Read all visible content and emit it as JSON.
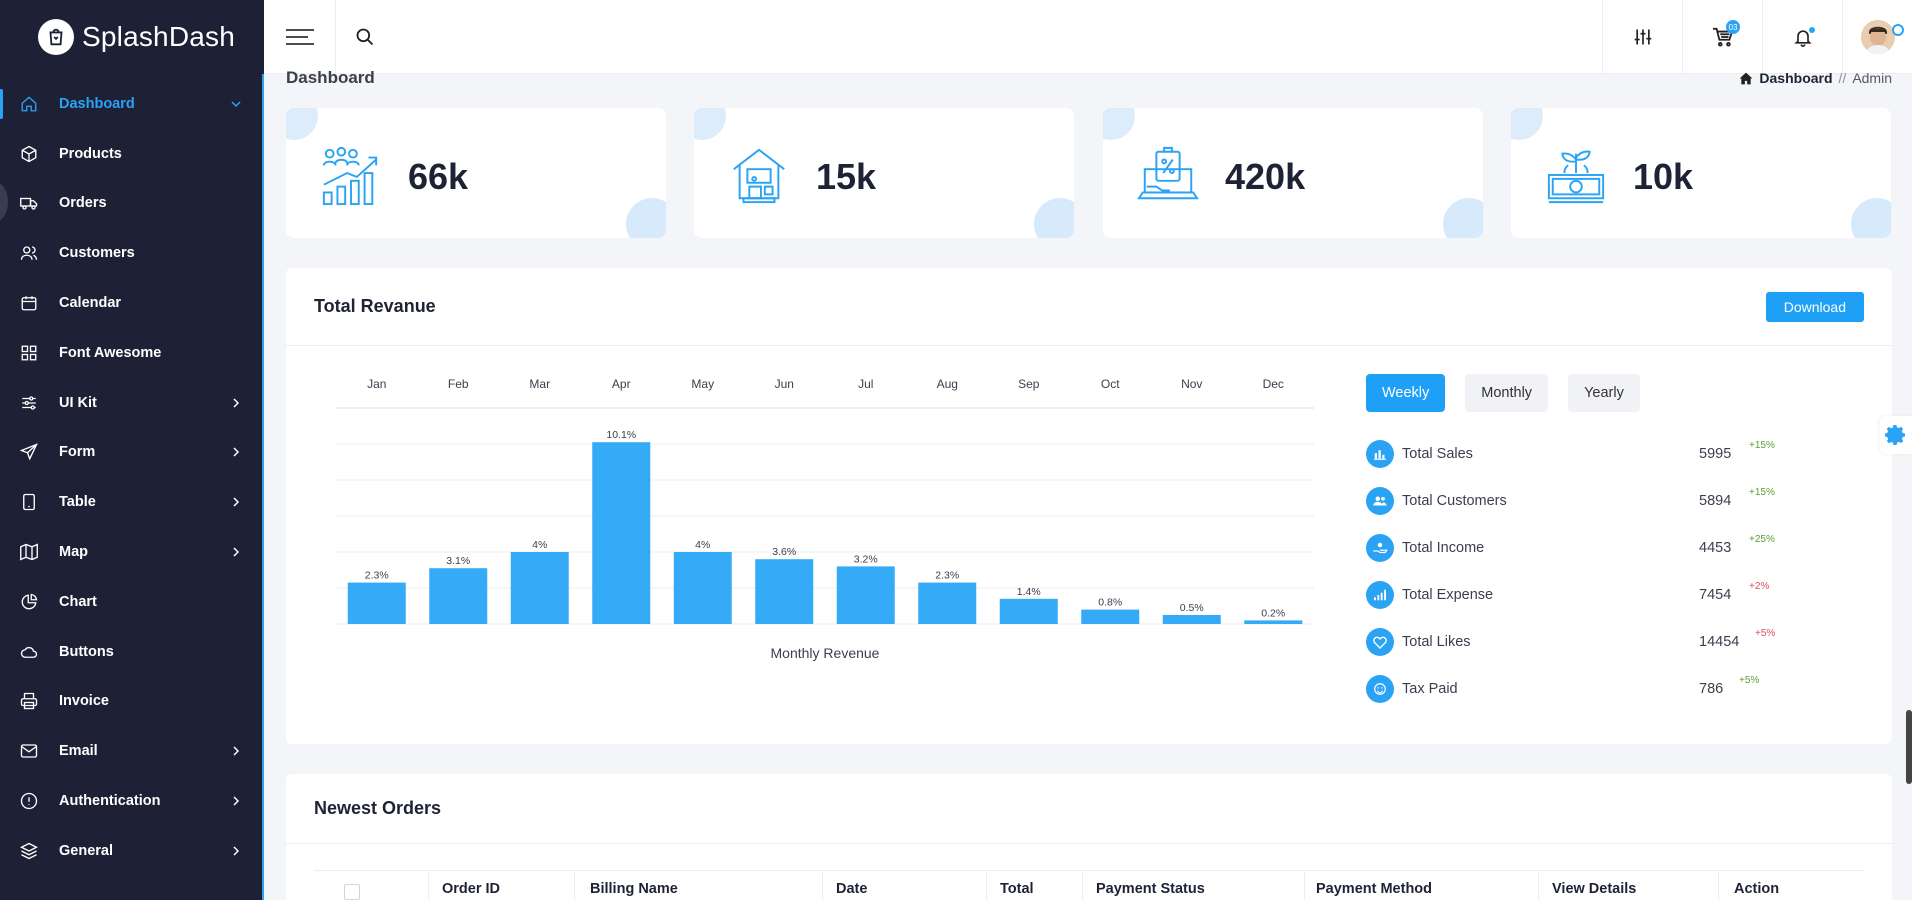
{
  "brand": {
    "name": "SplashDash"
  },
  "sidebar": {
    "items": [
      {
        "label": "Dashboard",
        "icon": "home-icon",
        "active": true,
        "expand": "down"
      },
      {
        "label": "Products",
        "icon": "cube-icon"
      },
      {
        "label": "Orders",
        "icon": "truck-icon"
      },
      {
        "label": "Customers",
        "icon": "users-icon"
      },
      {
        "label": "Calendar",
        "icon": "calendar-icon"
      },
      {
        "label": "Font Awesome",
        "icon": "grid-icon"
      },
      {
        "label": "UI Kit",
        "icon": "sliders-icon",
        "expand": "right"
      },
      {
        "label": "Form",
        "icon": "send-icon",
        "expand": "right"
      },
      {
        "label": "Table",
        "icon": "tablet-icon",
        "expand": "right"
      },
      {
        "label": "Map",
        "icon": "map-icon",
        "expand": "right"
      },
      {
        "label": "Chart",
        "icon": "pie-chart-icon"
      },
      {
        "label": "Buttons",
        "icon": "cloud-icon"
      },
      {
        "label": "Invoice",
        "icon": "printer-icon"
      },
      {
        "label": "Email",
        "icon": "mail-icon",
        "expand": "right"
      },
      {
        "label": "Authentication",
        "icon": "alert-circle-icon",
        "expand": "right"
      },
      {
        "label": "General",
        "icon": "layers-icon",
        "expand": "right"
      }
    ]
  },
  "topbar": {
    "cart_count": "03"
  },
  "page": {
    "title": "Dashboard",
    "breadcrumb": {
      "current": "Dashboard",
      "separator": "//",
      "last": "Admin"
    }
  },
  "stats": [
    {
      "value": "66k",
      "icon": "growth-chart-icon"
    },
    {
      "value": "15k",
      "icon": "store-icon"
    },
    {
      "value": "420k",
      "icon": "discount-laptop-icon"
    },
    {
      "value": "10k",
      "icon": "money-plant-icon"
    }
  ],
  "revenue": {
    "title": "Total Revanue",
    "download_label": "Download",
    "tabs": [
      {
        "label": "Weekly",
        "active": true
      },
      {
        "label": "Monthly"
      },
      {
        "label": "Yearly"
      }
    ],
    "summary": [
      {
        "label": "Total Sales",
        "value": "5995",
        "change": "+15%",
        "direction": "up",
        "icon": "bar-chart-icon"
      },
      {
        "label": "Total Customers",
        "value": "5894",
        "change": "+15%",
        "direction": "up",
        "icon": "users-icon"
      },
      {
        "label": "Total Income",
        "value": "4453",
        "change": "+25%",
        "direction": "up",
        "icon": "hand-coin-icon"
      },
      {
        "label": "Total Expense",
        "value": "7454",
        "change": "+2%",
        "direction": "down",
        "icon": "signal-icon"
      },
      {
        "label": "Total Likes",
        "value": "14454",
        "change": "+5%",
        "direction": "down",
        "icon": "heart-icon"
      },
      {
        "label": "Tax Paid",
        "value": "786",
        "change": "+5%",
        "direction": "up",
        "icon": "smile-icon"
      }
    ]
  },
  "chart_data": {
    "type": "bar",
    "categories": [
      "Jan",
      "Feb",
      "Mar",
      "Apr",
      "May",
      "Jun",
      "Jul",
      "Aug",
      "Sep",
      "Oct",
      "Nov",
      "Dec"
    ],
    "values": [
      2.3,
      3.1,
      4,
      10.1,
      4,
      3.6,
      3.2,
      2.3,
      1.4,
      0.8,
      0.5,
      0.2
    ],
    "data_labels": [
      "2.3%",
      "3.1%",
      "4%",
      "10.1%",
      "4%",
      "3.6%",
      "3.2%",
      "2.3%",
      "1.4%",
      "0.8%",
      "0.5%",
      "0.2%"
    ],
    "xlabel": "Monthly Revenue",
    "ylim": [
      0,
      12
    ],
    "grid": true,
    "x_axis_position": "top",
    "bar_color": "#35abf7"
  },
  "orders": {
    "title": "Newest Orders",
    "columns": [
      "Order ID",
      "Billing Name",
      "Date",
      "Total",
      "Payment Status",
      "Payment Method",
      "View Details",
      "Action"
    ]
  },
  "colors": {
    "accent": "#1ea0f7",
    "sidebar": "#1e2036",
    "up": "#5c9e2e",
    "down": "#e04b5a"
  }
}
